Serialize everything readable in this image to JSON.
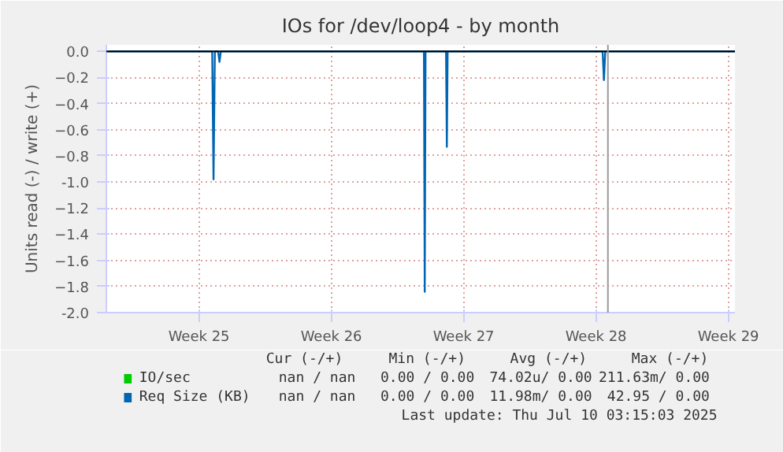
{
  "chart_data": {
    "type": "line",
    "title": "IOs for /dev/loop4 - by month",
    "ylabel": "Units read (-) / write (+)",
    "xlim": [
      "2025-06-11T02:24",
      "2025-07-14T08:24"
    ],
    "ylim": [
      -2.0,
      0.05
    ],
    "xticks": [
      {
        "value": "2025-06-16",
        "label": "Week 25"
      },
      {
        "value": "2025-06-23",
        "label": "Week 26"
      },
      {
        "value": "2025-06-30",
        "label": "Week 27"
      },
      {
        "value": "2025-07-07",
        "label": "Week 28"
      },
      {
        "value": "2025-07-14",
        "label": "Week 29"
      }
    ],
    "yticks": [
      {
        "value": 0,
        "label": "0.0"
      },
      -0.2,
      -0.4,
      -0.6,
      -0.8,
      {
        "value": -1,
        "label": "-1.0"
      },
      -1.2,
      -1.4,
      -1.6,
      -1.8,
      {
        "value": -2,
        "label": "-2.0"
      }
    ],
    "series": [
      {
        "name": "IO/sec",
        "color": "#00cc00"
      },
      {
        "name": "Req Size (KB)",
        "color": "#0066b3",
        "x": [
          "2025-06-11T02:24",
          "2025-06-16T16:48",
          "2025-06-16T18:29",
          "2025-06-16T20:10",
          "2025-06-17T00:22",
          "2025-06-17T02:02",
          "2025-06-17T03:43",
          "2025-06-27T21:36",
          "2025-06-27T22:36",
          "2025-06-27T23:37",
          "2025-06-29T01:39",
          "2025-06-29T02:40",
          "2025-06-29T03:40",
          "2025-07-07T08:24",
          "2025-07-07T10:05",
          "2025-07-07T11:46",
          "2025-07-14T08:24"
        ],
        "values": [
          0,
          0,
          -0.98,
          0,
          0,
          -0.08,
          0,
          0,
          -1.84,
          0,
          0,
          -0.73,
          0,
          0,
          -0.22,
          0,
          0
        ]
      }
    ],
    "ref_lines": [
      {
        "axis": "y",
        "value": 0,
        "color": "#000000"
      },
      {
        "axis": "x",
        "value": "2025-07-07T15:07",
        "color": "#999999"
      }
    ],
    "annotations": [
      "Cur (-/+)",
      "Min (-/+)",
      "Avg (-/+)",
      "Max (-/+)",
      "nan / nan",
      "0.00 / 0.00",
      "74.02u/ 0.00",
      "211.63m/ 0.00",
      "nan / nan",
      "0.00 / 0.00",
      "11.98m/ 0.00",
      "42.95 / 0.00",
      "Last update: Thu Jul 10 03:15:03 2025"
    ],
    "grid": true,
    "legend": "bottom"
  }
}
